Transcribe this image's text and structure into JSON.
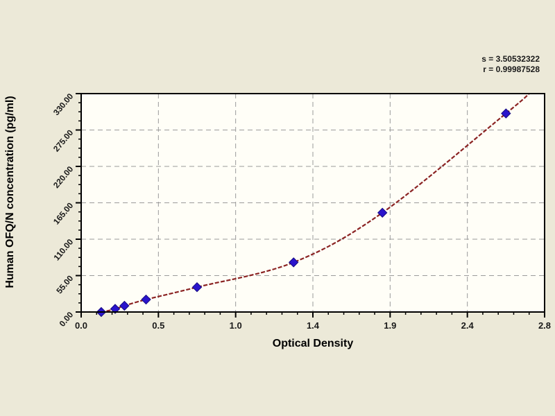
{
  "page": {
    "background": "#ece9d8"
  },
  "fit_annotation": {
    "s_line": "s = 3.50532322",
    "r_line": "r = 0.99987528"
  },
  "chart_data": {
    "type": "scatter",
    "title": "",
    "xlabel": "Optical Density",
    "ylabel": "Human OFQ/N concentration (pg/ml)",
    "xlim": [
      0,
      2.8
    ],
    "ylim": [
      0,
      330
    ],
    "x_tick_labels": [
      "0.0",
      "0.5",
      "1.0",
      "1.4",
      "1.9",
      "2.4",
      "2.8"
    ],
    "x_tick_values": [
      0,
      0.5,
      1.0,
      1.4,
      1.9,
      2.4,
      2.8
    ],
    "y_tick_labels": [
      "0.00",
      "55.00",
      "110.00",
      "165.00",
      "220.00",
      "275.00",
      "330.00"
    ],
    "y_tick_values": [
      0,
      55,
      110,
      165,
      220,
      275,
      330
    ],
    "x_minor_divisions": 5,
    "y_minor_divisions": 4,
    "grid": true,
    "grid_style": "dashed",
    "legend_position": "none",
    "series": [
      {
        "name": "standard-points",
        "marker": "diamond",
        "points": [
          {
            "x": 0.13,
            "y": 0
          },
          {
            "x": 0.22,
            "y": 4.7
          },
          {
            "x": 0.28,
            "y": 9.4
          },
          {
            "x": 0.42,
            "y": 18.8
          },
          {
            "x": 0.75,
            "y": 37.5
          },
          {
            "x": 1.3,
            "y": 75
          },
          {
            "x": 1.85,
            "y": 150
          },
          {
            "x": 2.6,
            "y": 300
          }
        ]
      }
    ],
    "fit_curve": {
      "type": "smooth-through-points",
      "start": {
        "x": 0.05,
        "y": 0
      },
      "end": {
        "x": 2.72,
        "y": 330
      },
      "s": "3.50532322",
      "r": "0.99987528"
    },
    "colors": {
      "page_bg": "#ece9d8",
      "plot_bg": "#fffef7",
      "axis": "#000000",
      "grid": "#9a9a9a",
      "curve": "#8b2323",
      "marker_fill": "#2a14cc",
      "marker_edge": "#160a80",
      "text": "#1a1a1a"
    }
  }
}
